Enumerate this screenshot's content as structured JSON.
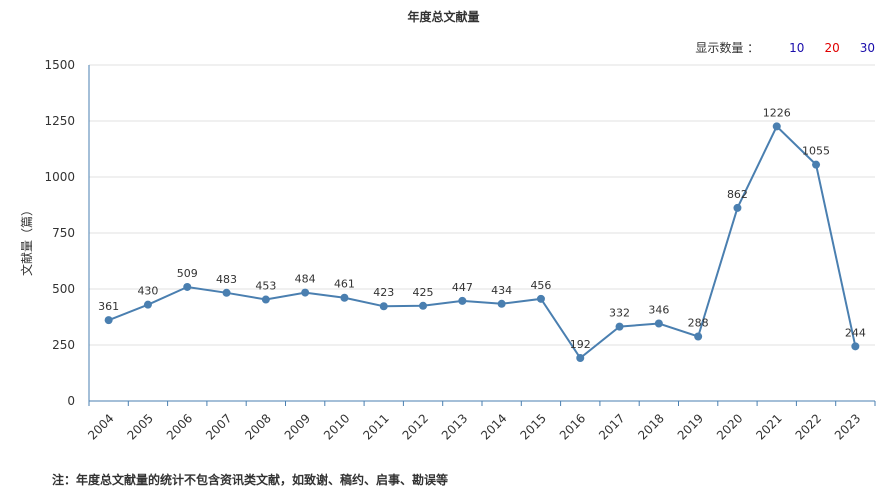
{
  "title": "年度总文献量",
  "display_count": {
    "label": "显示数量 ：",
    "options": [
      {
        "value": "10",
        "color": "#1a0dab"
      },
      {
        "value": "20",
        "color": "#e00000"
      },
      {
        "value": "30",
        "color": "#1a0dab"
      }
    ]
  },
  "note": "注：年度总文献量的统计不包含资讯类文献，如致谢、稿约、启事、勘误等",
  "chart_data": {
    "type": "line",
    "title": "年度总文献量",
    "xlabel": "",
    "ylabel": "文献量（篇）",
    "ylim": [
      0,
      1500
    ],
    "yticks": [
      0,
      250,
      500,
      750,
      1000,
      1250,
      1500
    ],
    "grid": true,
    "categories": [
      "2004",
      "2005",
      "2006",
      "2007",
      "2008",
      "2009",
      "2010",
      "2011",
      "2012",
      "2013",
      "2014",
      "2015",
      "2016",
      "2017",
      "2018",
      "2019",
      "2020",
      "2021",
      "2022",
      "2023"
    ],
    "series": [
      {
        "values": [
          361,
          430,
          509,
          483,
          453,
          484,
          461,
          423,
          425,
          447,
          434,
          456,
          192,
          332,
          346,
          288,
          862,
          1226,
          1055,
          244
        ],
        "color": "#4a7fb0"
      }
    ]
  }
}
